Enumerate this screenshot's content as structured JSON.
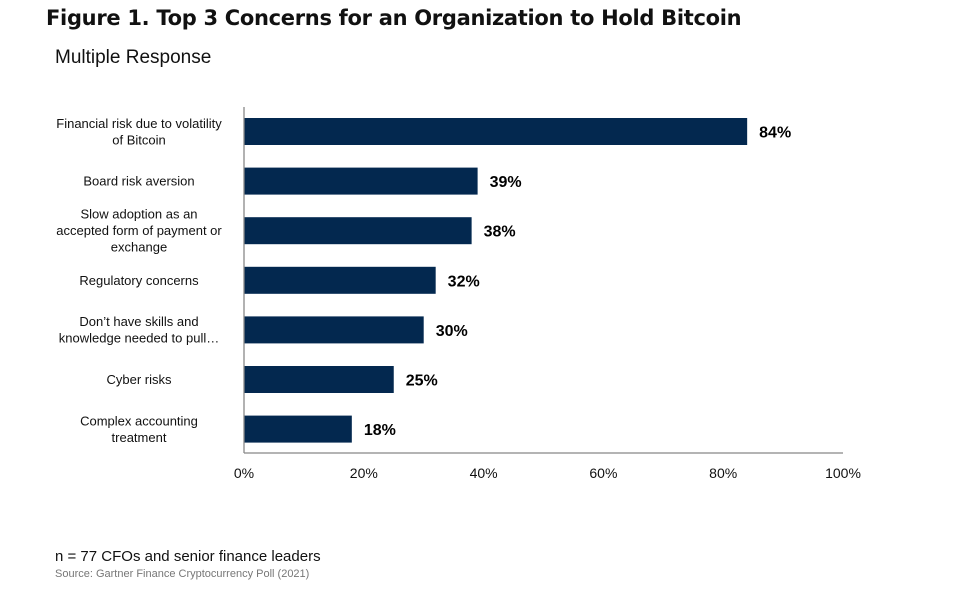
{
  "chart_data": {
    "type": "bar",
    "orientation": "horizontal",
    "title": "Figure 1. Top 3 Concerns for an Organization to Hold Bitcoin",
    "subtitle": "Multiple Response",
    "categories": [
      [
        "Financial risk due to volatility",
        "of Bitcoin"
      ],
      [
        "Board risk aversion"
      ],
      [
        "Slow adoption as an",
        "accepted form of payment or",
        "exchange"
      ],
      [
        "Regulatory concerns"
      ],
      [
        "Don’t have skills and",
        "knowledge needed to pull…"
      ],
      [
        "Cyber risks"
      ],
      [
        "Complex accounting",
        "treatment"
      ]
    ],
    "values": [
      84,
      39,
      38,
      32,
      30,
      25,
      18
    ],
    "value_labels": [
      "84%",
      "39%",
      "38%",
      "32%",
      "30%",
      "25%",
      "18%"
    ],
    "xlim": [
      0,
      100
    ],
    "x_ticks": [
      "0%",
      "20%",
      "40%",
      "60%",
      "80%",
      "100%"
    ],
    "grid": false,
    "bar_color": "#03284f"
  },
  "footer": {
    "note": "n = 77 CFOs and senior finance leaders",
    "source": "Source: Gartner Finance Cryptocurrency Poll (2021)"
  }
}
